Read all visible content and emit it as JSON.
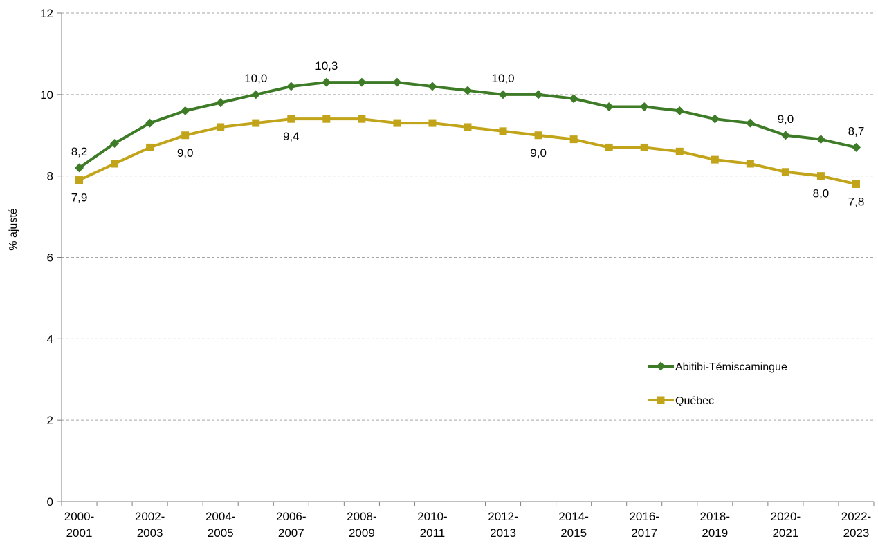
{
  "chart_data": {
    "type": "line",
    "title": "",
    "xlabel": "",
    "ylabel": "% ajusté",
    "ylim": [
      0,
      12
    ],
    "yticks": [
      "0",
      "2",
      "4",
      "6",
      "8",
      "10",
      "12"
    ],
    "grid": true,
    "legend_position": "right",
    "categories": [
      "2000-2001",
      "2001-2002",
      "2002-2003",
      "2003-2004",
      "2004-2005",
      "2005-2006",
      "2006-2007",
      "2007-2008",
      "2008-2009",
      "2009-2010",
      "2010-2011",
      "2011-2012",
      "2012-2013",
      "2013-2014",
      "2014-2015",
      "2015-2016",
      "2016-2017",
      "2017-2018",
      "2018-2019",
      "2019-2020",
      "2020-2021",
      "2021-2022",
      "2022-2023"
    ],
    "xtick_labels": [
      {
        "index": 0,
        "line1": "2000-",
        "line2": "2001"
      },
      {
        "index": 2,
        "line1": "2002-",
        "line2": "2003"
      },
      {
        "index": 4,
        "line1": "2004-",
        "line2": "2005"
      },
      {
        "index": 6,
        "line1": "2006-",
        "line2": "2007"
      },
      {
        "index": 8,
        "line1": "2008-",
        "line2": "2009"
      },
      {
        "index": 10,
        "line1": "2010-",
        "line2": "2011"
      },
      {
        "index": 12,
        "line1": "2012-",
        "line2": "2013"
      },
      {
        "index": 14,
        "line1": "2014-",
        "line2": "2015"
      },
      {
        "index": 16,
        "line1": "2016-",
        "line2": "2017"
      },
      {
        "index": 18,
        "line1": "2018-",
        "line2": "2019"
      },
      {
        "index": 20,
        "line1": "2020-",
        "line2": "2021"
      },
      {
        "index": 22,
        "line1": "2022-",
        "line2": "2023"
      }
    ],
    "series": [
      {
        "name": "Abitibi-Témiscamingue",
        "color": "#3e7b27",
        "marker": "diamond",
        "values": [
          8.2,
          8.8,
          9.3,
          9.6,
          9.8,
          10.0,
          10.2,
          10.3,
          10.3,
          10.3,
          10.2,
          10.1,
          10.0,
          10.0,
          9.9,
          9.7,
          9.7,
          9.6,
          9.4,
          9.3,
          9.0,
          8.9,
          8.7
        ],
        "labels": [
          {
            "index": 0,
            "text": "8,2",
            "position": "above"
          },
          {
            "index": 5,
            "text": "10,0",
            "position": "above"
          },
          {
            "index": 7,
            "text": "10,3",
            "position": "above"
          },
          {
            "index": 12,
            "text": "10,0",
            "position": "above"
          },
          {
            "index": 20,
            "text": "9,0",
            "position": "above"
          },
          {
            "index": 22,
            "text": "8,7",
            "position": "above"
          }
        ]
      },
      {
        "name": "Québec",
        "color": "#c2a41a",
        "marker": "square",
        "values": [
          7.9,
          8.3,
          8.7,
          9.0,
          9.2,
          9.3,
          9.4,
          9.4,
          9.4,
          9.3,
          9.3,
          9.2,
          9.1,
          9.0,
          8.9,
          8.7,
          8.7,
          8.6,
          8.4,
          8.3,
          8.1,
          8.0,
          7.8
        ],
        "labels": [
          {
            "index": 0,
            "text": "7,9",
            "position": "below"
          },
          {
            "index": 3,
            "text": "9,0",
            "position": "below"
          },
          {
            "index": 6,
            "text": "9,4",
            "position": "below"
          },
          {
            "index": 13,
            "text": "9,0",
            "position": "below"
          },
          {
            "index": 21,
            "text": "8,0",
            "position": "below"
          },
          {
            "index": 22,
            "text": "7,8",
            "position": "below"
          }
        ]
      }
    ]
  }
}
